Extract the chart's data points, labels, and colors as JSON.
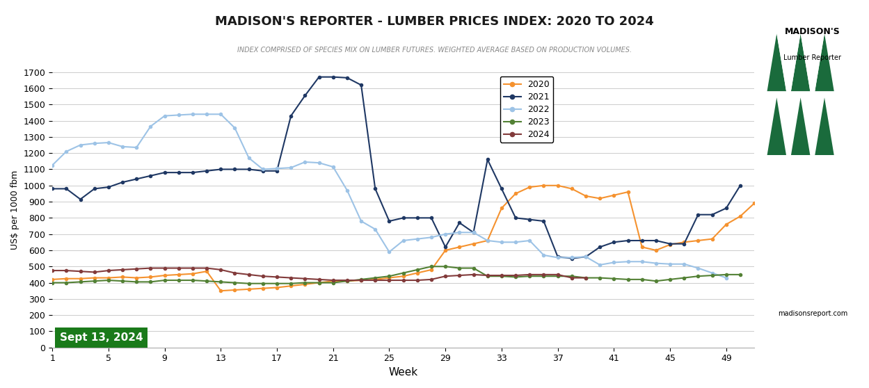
{
  "title": "MADISON'S REPORTER - LUMBER PRICES INDEX: 2020 TO 2024",
  "subtitle": "INDEX COMPRISED OF SPECIES MIX ON LUMBER FUTURES. WEIGHTED AVERAGE BASED ON PRODUCTION VOLUMES.",
  "xlabel": "Week",
  "ylabel": "US$ per 1000 fbm",
  "ylim": [
    0,
    1700
  ],
  "yticks": [
    0,
    100,
    200,
    300,
    400,
    500,
    600,
    700,
    800,
    900,
    1000,
    1100,
    1200,
    1300,
    1400,
    1500,
    1600,
    1700
  ],
  "xticks": [
    1,
    5,
    9,
    13,
    17,
    21,
    25,
    29,
    33,
    37,
    41,
    45,
    49
  ],
  "date_label": "Sept 13, 2024",
  "series": {
    "2020": {
      "color": "#F5922F",
      "weeks": [
        1,
        2,
        3,
        4,
        5,
        6,
        7,
        8,
        9,
        10,
        11,
        12,
        13,
        14,
        15,
        16,
        17,
        18,
        19,
        20,
        21,
        22,
        23,
        24,
        25,
        26,
        27,
        28,
        29,
        30,
        31,
        32,
        33,
        34,
        35,
        36,
        37,
        38,
        39,
        40,
        41,
        42,
        43,
        44,
        45,
        46,
        47,
        48,
        49,
        50,
        51
      ],
      "values": [
        420,
        425,
        425,
        430,
        430,
        435,
        430,
        435,
        445,
        450,
        455,
        470,
        350,
        355,
        360,
        365,
        370,
        380,
        390,
        400,
        410,
        410,
        415,
        420,
        430,
        440,
        460,
        480,
        600,
        620,
        640,
        660,
        860,
        950,
        990,
        1000,
        1000,
        980,
        935,
        920,
        940,
        960,
        620,
        600,
        635,
        650,
        660,
        670,
        760,
        810,
        890
      ]
    },
    "2021": {
      "color": "#1F3864",
      "weeks": [
        1,
        2,
        3,
        4,
        5,
        6,
        7,
        8,
        9,
        10,
        11,
        12,
        13,
        14,
        15,
        16,
        17,
        18,
        19,
        20,
        21,
        22,
        23,
        24,
        25,
        26,
        27,
        28,
        29,
        30,
        31,
        32,
        33,
        34,
        35,
        36,
        37,
        38,
        39,
        40,
        41,
        42,
        43,
        44,
        45,
        46,
        47,
        48,
        49,
        50,
        51
      ],
      "values": [
        980,
        980,
        915,
        980,
        990,
        1020,
        1040,
        1060,
        1080,
        1080,
        1080,
        1090,
        1100,
        1100,
        1100,
        1090,
        1090,
        1430,
        1555,
        1670,
        1670,
        1665,
        1620,
        980,
        780,
        800,
        800,
        800,
        620,
        770,
        710,
        1160,
        980,
        800,
        790,
        780,
        560,
        550,
        560,
        620,
        650,
        660,
        660,
        660,
        640,
        640,
        820,
        820,
        860,
        1000,
        null
      ]
    },
    "2022": {
      "color": "#9DC3E6",
      "weeks": [
        1,
        2,
        3,
        4,
        5,
        6,
        7,
        8,
        9,
        10,
        11,
        12,
        13,
        14,
        15,
        16,
        17,
        18,
        19,
        20,
        21,
        22,
        23,
        24,
        25,
        26,
        27,
        28,
        29,
        30,
        31,
        32,
        33,
        34,
        35,
        36,
        37,
        38,
        39,
        40,
        41,
        42,
        43,
        44,
        45,
        46,
        47,
        48,
        49,
        50,
        51
      ],
      "values": [
        1125,
        1210,
        1250,
        1260,
        1265,
        1240,
        1235,
        1365,
        1430,
        1435,
        1440,
        1440,
        1440,
        1355,
        1170,
        1100,
        1105,
        1110,
        1145,
        1140,
        1115,
        970,
        780,
        730,
        590,
        660,
        670,
        680,
        700,
        710,
        710,
        660,
        650,
        650,
        660,
        570,
        555,
        555,
        560,
        510,
        525,
        530,
        530,
        520,
        515,
        515,
        490,
        460,
        430,
        null,
        null
      ]
    },
    "2023": {
      "color": "#538135",
      "weeks": [
        1,
        2,
        3,
        4,
        5,
        6,
        7,
        8,
        9,
        10,
        11,
        12,
        13,
        14,
        15,
        16,
        17,
        18,
        19,
        20,
        21,
        22,
        23,
        24,
        25,
        26,
        27,
        28,
        29,
        30,
        31,
        32,
        33,
        34,
        35,
        36,
        37,
        38,
        39,
        40,
        41,
        42,
        43,
        44,
        45,
        46,
        47,
        48,
        49,
        50,
        51
      ],
      "values": [
        400,
        400,
        405,
        410,
        415,
        410,
        405,
        405,
        415,
        415,
        415,
        410,
        405,
        400,
        395,
        395,
        395,
        395,
        400,
        400,
        400,
        410,
        420,
        430,
        440,
        460,
        480,
        500,
        500,
        490,
        490,
        440,
        440,
        435,
        440,
        440,
        440,
        440,
        430,
        430,
        425,
        420,
        420,
        410,
        420,
        430,
        440,
        445,
        450,
        450,
        null
      ]
    },
    "2024": {
      "color": "#823B3B",
      "weeks": [
        1,
        2,
        3,
        4,
        5,
        6,
        7,
        8,
        9,
        10,
        11,
        12,
        13,
        14,
        15,
        16,
        17,
        18,
        19,
        20,
        21,
        22,
        23,
        24,
        25,
        26,
        27,
        28,
        29,
        30,
        31,
        32,
        33,
        34,
        35,
        36,
        37,
        38,
        39
      ],
      "values": [
        475,
        475,
        470,
        465,
        475,
        480,
        485,
        490,
        490,
        490,
        490,
        490,
        480,
        460,
        450,
        440,
        435,
        430,
        425,
        420,
        415,
        415,
        415,
        415,
        415,
        415,
        415,
        420,
        440,
        445,
        450,
        445,
        445,
        445,
        450,
        450,
        450,
        430,
        430
      ]
    }
  },
  "background_color": "#FFFFFF",
  "plot_bg_color": "#FFFFFF",
  "grid_color": "#CCCCCC"
}
